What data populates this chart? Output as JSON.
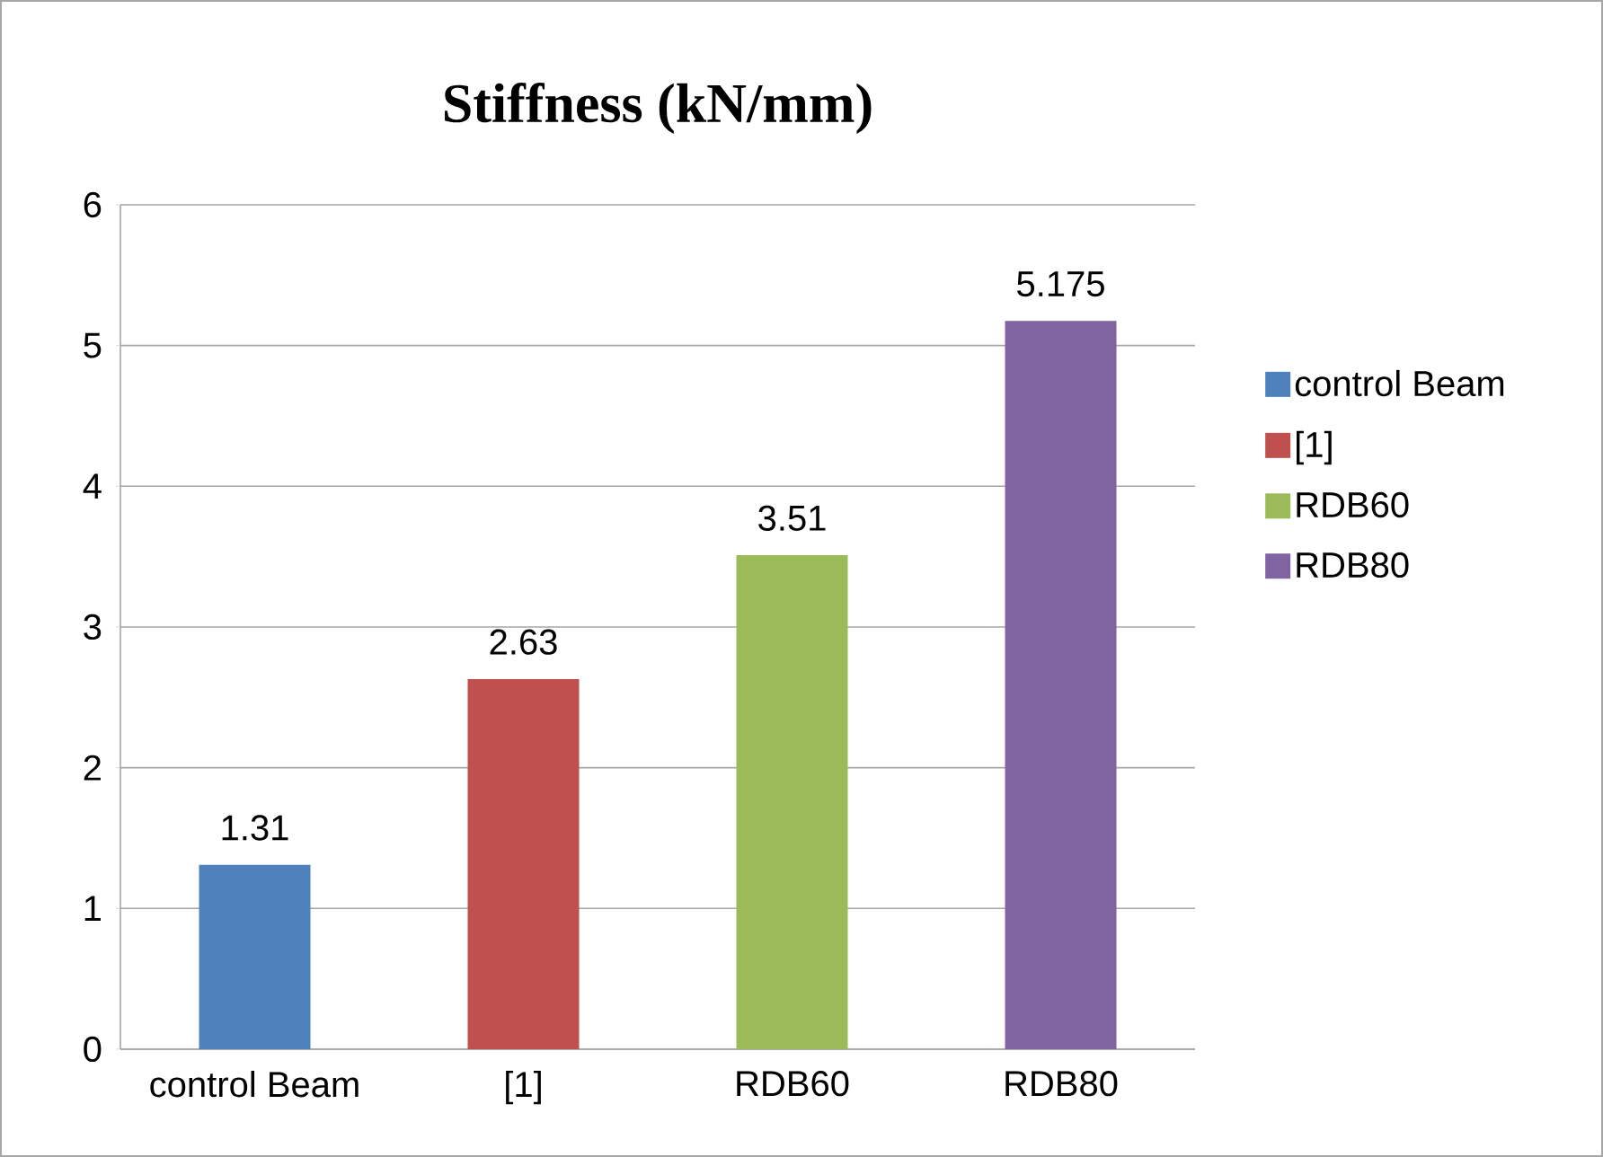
{
  "chart_data": {
    "type": "bar",
    "title": "Stiffness  (kN/mm)",
    "categories": [
      "control Beam",
      "[1]",
      "RDB60",
      "RDB80"
    ],
    "series": [
      {
        "name": "control Beam",
        "color": "#4f81bd",
        "values": [
          1.31,
          null,
          null,
          null
        ]
      },
      {
        "name": "[1]",
        "color": "#c0504d",
        "values": [
          null,
          2.63,
          null,
          null
        ]
      },
      {
        "name": "RDB60",
        "color": "#9bbb59",
        "values": [
          null,
          null,
          3.51,
          null
        ]
      },
      {
        "name": "RDB80",
        "color": "#8064a2",
        "values": [
          null,
          null,
          null,
          5.175
        ]
      }
    ],
    "ylim": [
      0,
      6
    ],
    "yticks": [
      0,
      1,
      2,
      3,
      4,
      5,
      6
    ],
    "grid": "y",
    "data_labels": true,
    "legend": "right"
  }
}
